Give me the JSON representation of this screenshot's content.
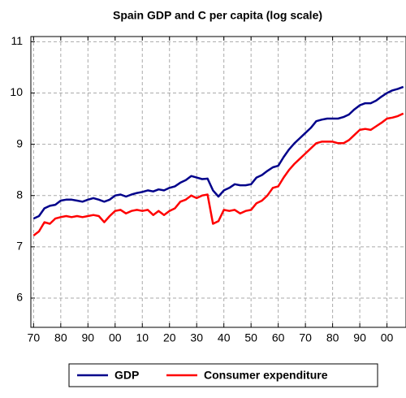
{
  "chart_data": {
    "type": "line",
    "title": "Spain GDP and C per capita (log scale)",
    "categories": [
      "70",
      null,
      null,
      null,
      null,
      "80",
      null,
      null,
      null,
      null,
      "90",
      null,
      null,
      null,
      null,
      "00",
      null,
      null,
      null,
      null,
      "10",
      null,
      null,
      null,
      null,
      "20",
      null,
      null,
      null,
      null,
      "30",
      null,
      null,
      null,
      null,
      "40",
      null,
      null,
      null,
      null,
      "50",
      null,
      null,
      null,
      null,
      "60",
      null,
      null,
      null,
      null,
      "70",
      null,
      null,
      null,
      null,
      "80",
      null,
      null,
      null,
      null,
      "90",
      null,
      null,
      null,
      null,
      "00",
      null,
      null,
      null
    ],
    "series": [
      {
        "name": "GDP",
        "color": "#00008b",
        "values": [
          7.55,
          7.6,
          7.75,
          7.8,
          7.82,
          7.9,
          7.92,
          7.92,
          7.9,
          7.88,
          7.92,
          7.95,
          7.92,
          7.88,
          7.92,
          8.0,
          8.02,
          7.98,
          8.02,
          8.05,
          8.07,
          8.1,
          8.08,
          8.12,
          8.1,
          8.15,
          8.18,
          8.25,
          8.3,
          8.38,
          8.35,
          8.32,
          8.33,
          8.1,
          7.98,
          8.1,
          8.15,
          8.22,
          8.2,
          8.2,
          8.22,
          8.35,
          8.4,
          8.48,
          8.55,
          8.58,
          8.75,
          8.9,
          9.02,
          9.12,
          9.22,
          9.32,
          9.45,
          9.48,
          9.5,
          9.5,
          9.5,
          9.53,
          9.58,
          9.68,
          9.76,
          9.8,
          9.8,
          9.85,
          9.93,
          10.0,
          10.05,
          10.08,
          10.12
        ]
      },
      {
        "name": "Consumer expenditure",
        "color": "#ff0000",
        "values": [
          7.22,
          7.3,
          7.48,
          7.45,
          7.55,
          7.58,
          7.6,
          7.58,
          7.6,
          7.58,
          7.6,
          7.62,
          7.6,
          7.48,
          7.6,
          7.7,
          7.72,
          7.65,
          7.7,
          7.72,
          7.7,
          7.72,
          7.62,
          7.7,
          7.62,
          7.7,
          7.75,
          7.88,
          7.92,
          8.0,
          7.95,
          8.0,
          8.02,
          7.45,
          7.5,
          7.72,
          7.7,
          7.72,
          7.65,
          7.7,
          7.72,
          7.85,
          7.9,
          8.0,
          8.15,
          8.18,
          8.35,
          8.5,
          8.62,
          8.72,
          8.82,
          8.92,
          9.02,
          9.05,
          9.05,
          9.05,
          9.02,
          9.02,
          9.08,
          9.18,
          9.28,
          9.3,
          9.28,
          9.35,
          9.42,
          9.5,
          9.52,
          9.55,
          9.6
        ]
      }
    ],
    "ylim": [
      5.43,
      11.1
    ],
    "yticks": [
      6,
      7,
      8,
      9,
      10,
      11
    ],
    "grid": true,
    "legend": "bottom"
  }
}
